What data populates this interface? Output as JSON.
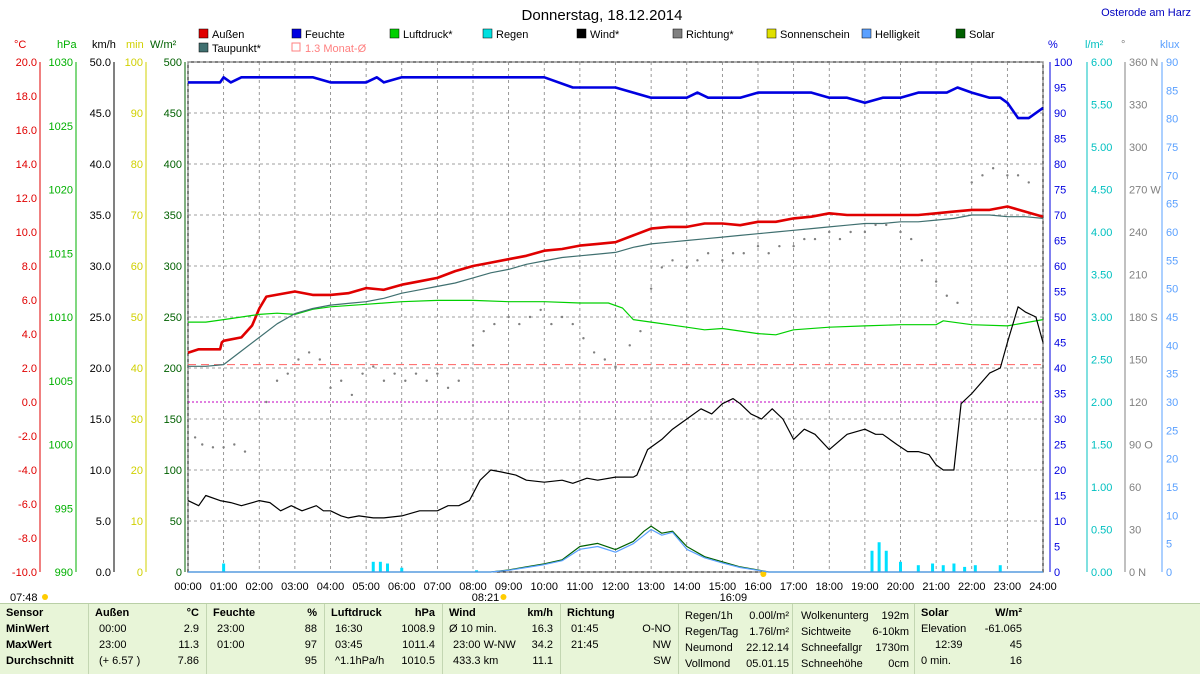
{
  "title": "Donnerstag, 18.12.2014",
  "station": "Osterode am Harz",
  "legend": [
    {
      "label": "Außen",
      "color": "#e00000"
    },
    {
      "label": "Feuchte",
      "color": "#0000e0"
    },
    {
      "label": "Luftdruck*",
      "color": "#00d000"
    },
    {
      "label": "Regen",
      "color": "#00e0e0"
    },
    {
      "label": "Wind*",
      "color": "#000000"
    },
    {
      "label": "Richtung*",
      "color": "#808080"
    },
    {
      "label": "Sonnenschein",
      "color": "#e0e000"
    },
    {
      "label": "Helligkeit",
      "color": "#5aa0ff"
    },
    {
      "label": "Solar",
      "color": "#006000"
    },
    {
      "label": "Taupunkt*",
      "color": "#407070"
    },
    {
      "label": "1.3 Monat-Ø",
      "color": "#ff8080"
    }
  ],
  "axes": {
    "temp": {
      "unit": "°C",
      "color": "#e00000",
      "ticks": [
        "20.0",
        "18.0",
        "16.0",
        "14.0",
        "12.0",
        "10.0",
        "8.0",
        "6.0",
        "4.0",
        "2.0",
        "0.0",
        "-2.0",
        "-4.0",
        "-6.0",
        "-8.0",
        "-10.0"
      ]
    },
    "press": {
      "unit": "hPa",
      "color": "#00b000",
      "ticks": [
        "1030",
        "1025",
        "1020",
        "1015",
        "1010",
        "1005",
        "1000",
        "995",
        "990"
      ]
    },
    "wind": {
      "unit": "km/h",
      "color": "#000000",
      "ticks": [
        "50.0",
        "45.0",
        "40.0",
        "35.0",
        "30.0",
        "25.0",
        "20.0",
        "15.0",
        "10.0",
        "5.0",
        "0.0"
      ]
    },
    "sun": {
      "unit": "min",
      "color": "#d0d000",
      "ticks": [
        "100",
        "90",
        "80",
        "70",
        "60",
        "50",
        "40",
        "30",
        "20",
        "10",
        "0"
      ]
    },
    "solar": {
      "unit": "W/m²",
      "color": "#006000",
      "ticks": [
        "500",
        "450",
        "400",
        "350",
        "300",
        "250",
        "200",
        "150",
        "100",
        "50",
        "0"
      ]
    },
    "hum": {
      "unit": "%",
      "color": "#0000e0",
      "ticks": [
        "100",
        "95",
        "90",
        "85",
        "80",
        "75",
        "70",
        "65",
        "60",
        "55",
        "50",
        "45",
        "40",
        "35",
        "30",
        "25",
        "20",
        "15",
        "10",
        "5",
        "0"
      ]
    },
    "rain": {
      "unit": "l/m²",
      "color": "#00c0c0",
      "ticks": [
        "6.00",
        "5.50",
        "5.00",
        "4.50",
        "4.00",
        "3.50",
        "3.00",
        "2.50",
        "2.00",
        "1.50",
        "1.00",
        "0.50",
        "0.00"
      ]
    },
    "dir": {
      "unit": "°",
      "color": "#808080",
      "ticks": [
        "360 N",
        "330",
        "300",
        "270 W",
        "240",
        "210",
        "180 S",
        "150",
        "120",
        "90 O",
        "60",
        "30",
        "0 N"
      ]
    },
    "klux": {
      "unit": "klux",
      "color": "#5aa0ff",
      "ticks": [
        "90",
        "85",
        "80",
        "75",
        "70",
        "65",
        "60",
        "55",
        "50",
        "45",
        "40",
        "35",
        "30",
        "25",
        "20",
        "15",
        "10",
        "5",
        "0"
      ]
    }
  },
  "x_ticks": [
    "00:00",
    "01:00",
    "02:00",
    "03:00",
    "04:00",
    "05:00",
    "06:00",
    "07:00",
    "08:00",
    "09:00",
    "10:00",
    "11:00",
    "12:00",
    "13:00",
    "14:00",
    "15:00",
    "16:00",
    "17:00",
    "18:00",
    "19:00",
    "20:00",
    "21:00",
    "22:00",
    "23:00",
    "24:00"
  ],
  "sunrise": "08:21",
  "sunset": "16:09",
  "corner_time": "07:48",
  "chart_data": {
    "type": "line",
    "x_unit": "hour",
    "series": [
      {
        "name": "Außen",
        "unit": "°C",
        "color": "#e00000",
        "x": [
          0,
          0.3,
          0.9,
          0.95,
          1,
          1.5,
          1.8,
          2,
          2.2,
          3,
          3.5,
          4,
          4.5,
          5,
          5.5,
          6,
          6.5,
          7,
          7.5,
          8,
          8.5,
          9,
          9.5,
          10,
          10.5,
          11,
          11.5,
          12,
          12.5,
          13,
          13.5,
          14,
          14.5,
          15,
          15.5,
          16,
          16.5,
          17,
          17.5,
          18,
          18.5,
          19,
          19.5,
          20,
          20.5,
          21,
          21.5,
          22,
          22.5,
          23,
          23.5,
          24
        ],
        "y": [
          2.9,
          3.1,
          3.1,
          3.5,
          3.6,
          3.8,
          4.5,
          5.5,
          6.2,
          6.5,
          6.3,
          6.3,
          6.4,
          6.7,
          6.6,
          6.9,
          7.1,
          7.3,
          7.7,
          8.0,
          8.2,
          8.4,
          8.6,
          8.9,
          9.0,
          9.2,
          9.3,
          9.4,
          9.8,
          10.2,
          10.3,
          10.3,
          10.5,
          10.5,
          10.4,
          10.6,
          10.6,
          10.8,
          10.9,
          11.1,
          11.0,
          11.0,
          11.0,
          11.0,
          11.0,
          11.1,
          11.2,
          11.3,
          11.3,
          11.5,
          11.2,
          10.9
        ]
      },
      {
        "name": "Feuchte",
        "unit": "%",
        "color": "#0000e0",
        "x": [
          0,
          0.9,
          1,
          1.2,
          1.5,
          2,
          2.5,
          3,
          3.5,
          4,
          4.5,
          5,
          5.3,
          5.5,
          6,
          7,
          8,
          9,
          10,
          10.8,
          11,
          11.5,
          12,
          12.5,
          13,
          13.5,
          14,
          14.3,
          14.6,
          15,
          15.5,
          16,
          16.5,
          17,
          17.5,
          18,
          18.5,
          19,
          19.5,
          20,
          20.5,
          21,
          21.3,
          21.6,
          22,
          22.5,
          22.8,
          23,
          23.3,
          23.6,
          24
        ],
        "y": [
          96,
          96,
          97,
          96,
          97,
          97,
          97,
          97,
          97,
          96,
          96,
          96,
          97,
          96,
          97,
          97,
          97,
          97,
          97,
          95,
          95,
          95,
          95,
          94,
          93,
          93,
          93,
          94,
          93,
          93,
          93,
          94,
          94,
          94,
          94,
          93,
          93,
          92,
          93,
          93,
          94,
          94,
          94,
          95,
          94,
          93,
          93,
          92,
          89,
          89,
          91
        ]
      },
      {
        "name": "Luftdruck",
        "unit": "hPa",
        "color": "#00d000",
        "x": [
          0,
          0.5,
          1,
          2,
          2.5,
          3,
          3.5,
          4,
          5,
          6,
          7,
          8,
          9,
          10,
          11,
          11.8,
          12.2,
          12.5,
          13,
          14,
          14.5,
          15,
          16,
          16.5,
          17,
          18,
          19,
          20,
          21,
          21.2,
          22,
          23,
          24
        ],
        "y": [
          1009.6,
          1009.6,
          1009.8,
          1010.2,
          1010.3,
          1010.2,
          1010.6,
          1010.8,
          1011.0,
          1011.2,
          1011.3,
          1011.3,
          1011.2,
          1011.2,
          1011.1,
          1011.1,
          1010.7,
          1009.8,
          1009.6,
          1009.2,
          1009.0,
          1009.1,
          1008.7,
          1008.6,
          1009.0,
          1009.2,
          1009.3,
          1009.4,
          1009.4,
          1009.7,
          1009.4,
          1009.3,
          1009.8
        ]
      },
      {
        "name": "Taupunkt",
        "unit": "°C",
        "color": "#407070",
        "x": [
          0,
          0.5,
          1,
          1.5,
          2,
          2.5,
          3,
          3.5,
          4,
          4.5,
          5,
          5.5,
          6,
          6.5,
          7,
          7.5,
          8,
          8.5,
          9,
          9.5,
          10,
          10.5,
          11,
          11.5,
          12,
          12.5,
          13,
          13.5,
          14,
          14.5,
          15,
          15.5,
          16,
          16.5,
          17,
          17.5,
          18,
          18.5,
          19,
          19.5,
          20,
          20.5,
          21,
          21.5,
          22,
          22.5,
          23,
          23.5,
          24
        ],
        "y": [
          2.1,
          2.1,
          2.2,
          3.0,
          3.8,
          4.6,
          5.2,
          5.5,
          5.7,
          5.8,
          5.9,
          6.1,
          6.4,
          6.6,
          6.8,
          7.0,
          7.3,
          7.6,
          7.8,
          8.1,
          8.3,
          8.5,
          8.6,
          8.7,
          8.8,
          9.1,
          9.3,
          9.4,
          9.5,
          9.6,
          9.7,
          9.8,
          9.9,
          10.0,
          10.1,
          10.2,
          10.3,
          10.4,
          10.5,
          10.5,
          10.6,
          10.6,
          10.7,
          10.8,
          11.0,
          11.0,
          10.9,
          10.9,
          10.8
        ]
      },
      {
        "name": "Wind",
        "unit": "km/h",
        "color": "#000000",
        "x": [
          0,
          0.3,
          0.5,
          0.9,
          1.2,
          1.5,
          2,
          2.3,
          2.6,
          2.9,
          3.2,
          3.6,
          3.8,
          4,
          4.3,
          4.5,
          4.8,
          5.2,
          5.5,
          6,
          6.5,
          7,
          7.3,
          7.6,
          7.9,
          8.2,
          8.5,
          8.8,
          9.2,
          9.5,
          10,
          10.5,
          10.8,
          11.2,
          11.5,
          12,
          12.5,
          12.6,
          12.9,
          13.3,
          13.6,
          14,
          14.4,
          14.7,
          15,
          15.3,
          15.5,
          15.8,
          16.1,
          16.4,
          16.7,
          17,
          17.3,
          17.6,
          18,
          18.5,
          19,
          19.3,
          19.5,
          19.9,
          20.2,
          20.5,
          20.8,
          21,
          21.2,
          21.3,
          21.5,
          21.7,
          22,
          22.5,
          22.8,
          23,
          23.3,
          23.5,
          23.8,
          24
        ],
        "y": [
          7,
          6.5,
          7.5,
          7.0,
          6.8,
          6.5,
          7.0,
          6.8,
          6.0,
          6.5,
          6.0,
          6.5,
          6.0,
          6.0,
          5.5,
          5.3,
          5.5,
          5.3,
          5.3,
          5.5,
          6.0,
          6.0,
          6.5,
          6.5,
          7.0,
          9.0,
          10.0,
          9.8,
          9.5,
          9.0,
          8.8,
          9.0,
          8.7,
          9.2,
          9.0,
          9.3,
          9.3,
          9.5,
          12,
          13,
          14,
          15,
          16,
          15.5,
          16.5,
          17,
          16.5,
          15.5,
          15,
          16,
          15,
          13,
          14,
          13.5,
          12,
          13.5,
          14,
          13.5,
          13.5,
          12.5,
          11.8,
          11.8,
          11.5,
          10.5,
          10,
          10,
          10,
          16.5,
          17.5,
          19.5,
          20,
          22.5,
          26,
          25.5,
          25.0,
          22.5
        ]
      },
      {
        "name": "Richtung",
        "unit": "°",
        "color": "#808080",
        "x": [
          0.2,
          0.4,
          0.7,
          1,
          1.3,
          1.6,
          2.2,
          2.5,
          2.8,
          3.1,
          3.4,
          3.7,
          4,
          4.3,
          4.6,
          4.9,
          5.2,
          5.5,
          5.8,
          6.1,
          6.4,
          6.7,
          7,
          7.3,
          7.6,
          8,
          8.3,
          8.6,
          9,
          9.3,
          9.6,
          9.9,
          10.2,
          10.5,
          10.8,
          11.1,
          11.4,
          11.7,
          12,
          12.4,
          12.7,
          13,
          13.3,
          13.6,
          14,
          14.3,
          14.6,
          15,
          15.3,
          15.6,
          16,
          16.3,
          16.6,
          17,
          17.3,
          17.6,
          18,
          18.3,
          18.6,
          19,
          19.3,
          19.6,
          20,
          20.3,
          20.6,
          21,
          21.3,
          21.6,
          22,
          22.3,
          22.6,
          23,
          23.3,
          23.6
        ],
        "y": [
          95,
          90,
          88,
          88,
          90,
          85,
          120,
          135,
          140,
          150,
          155,
          150,
          130,
          135,
          125,
          140,
          145,
          135,
          140,
          135,
          140,
          135,
          140,
          130,
          135,
          160,
          170,
          175,
          180,
          175,
          180,
          185,
          175,
          180,
          175,
          165,
          155,
          150,
          145,
          160,
          170,
          200,
          215,
          220,
          215,
          220,
          225,
          220,
          225,
          225,
          230,
          225,
          230,
          230,
          235,
          235,
          240,
          235,
          240,
          240,
          245,
          245,
          240,
          235,
          220,
          205,
          195,
          190,
          275,
          280,
          285,
          280,
          280,
          275
        ]
      },
      {
        "name": "Solar",
        "unit": "W/m²",
        "color": "#006000",
        "x": [
          0,
          8.5,
          9,
          9.5,
          10,
          10.5,
          11,
          11.5,
          12,
          12.5,
          12.8,
          13,
          13.3,
          13.6,
          14,
          14.5,
          15,
          15.5,
          16,
          16.3,
          24
        ],
        "y": [
          0,
          0,
          2,
          5,
          8,
          12,
          25,
          28,
          22,
          30,
          40,
          45,
          38,
          40,
          25,
          15,
          10,
          5,
          2,
          0,
          0
        ]
      },
      {
        "name": "Helligkeit",
        "unit": "klux",
        "color": "#5aa0ff",
        "x": [
          0,
          8.5,
          9,
          9.5,
          10,
          10.5,
          11,
          11.5,
          12,
          12.5,
          12.8,
          13,
          13.3,
          13.6,
          14,
          14.5,
          15,
          15.5,
          16,
          16.3,
          24
        ],
        "y": [
          0,
          0,
          0.3,
          0.8,
          1.3,
          2.0,
          4.0,
          4.5,
          3.5,
          5.0,
          6.5,
          7.5,
          6.5,
          7.0,
          4.0,
          2.5,
          1.6,
          0.8,
          0.3,
          0,
          0
        ]
      }
    ],
    "rain_bars": {
      "unit": "l/m²",
      "x": [
        1.0,
        5.2,
        5.4,
        5.6,
        6.0,
        8.1,
        19.2,
        19.4,
        19.6,
        20.0,
        20.5,
        20.9,
        21.2,
        21.5,
        21.8,
        22.1,
        22.8
      ],
      "y": [
        0.1,
        0.12,
        0.12,
        0.1,
        0.05,
        0.02,
        0.25,
        0.35,
        0.25,
        0.12,
        0.08,
        0.1,
        0.08,
        0.1,
        0.06,
        0.08,
        0.08
      ]
    },
    "reference_lines": [
      {
        "name": "1.3 Monat-Ø",
        "axis": "°C",
        "value": 2.2,
        "color": "#ff6060"
      },
      {
        "name": "Taupunkt-Ref",
        "axis": "°C",
        "value": 0.0,
        "color": "#c000c0"
      }
    ],
    "x_range": [
      0,
      24
    ],
    "grid": true
  },
  "table": {
    "row_labels": [
      "Sensor",
      "MinWert",
      "MaxWert",
      "Durchschnitt"
    ],
    "aussen": {
      "hdr": "Außen",
      "unit": "°C",
      "rows": [
        [
          "00:00",
          "2.9"
        ],
        [
          "23:00",
          "11.3"
        ],
        [
          "(+ 6.57 )",
          "7.86"
        ]
      ]
    },
    "feuchte": {
      "hdr": "Feuchte",
      "unit": "%",
      "rows": [
        [
          "23:00",
          "88"
        ],
        [
          "01:00",
          "97"
        ],
        [
          "",
          "95"
        ]
      ]
    },
    "luftdruck": {
      "hdr": "Luftdruck",
      "unit": "hPa",
      "rows": [
        [
          "16:30",
          "1008.9"
        ],
        [
          "03:45",
          "1011.4"
        ],
        [
          "^1.1hPa/h",
          "1010.5"
        ]
      ]
    },
    "wind": {
      "hdr": "Wind",
      "unit": "km/h",
      "rows": [
        [
          "Ø 10 min.",
          "16.3"
        ],
        [
          "23:00   W-NW",
          "34.2"
        ],
        [
          "433.3 km",
          "11.1"
        ]
      ]
    },
    "richtung": {
      "hdr": "Richtung",
      "rows": [
        [
          "01:45",
          "O-NO"
        ],
        [
          "21:45",
          "NW"
        ],
        [
          "",
          "SW"
        ]
      ]
    },
    "regen": {
      "rows": [
        [
          "Regen/1h",
          "0.00l/m²"
        ],
        [
          "Regen/Tag",
          "1.76l/m²"
        ],
        [
          "Neumond",
          "22.12.14"
        ],
        [
          "Vollmond",
          "05.01.15"
        ]
      ]
    },
    "wolken": {
      "rows": [
        [
          "Wolkenunterg",
          "192m"
        ],
        [
          "Sichtweite",
          "6-10km"
        ],
        [
          "Schneefallgr",
          "1730m"
        ],
        [
          "Schneehöhe",
          "0cm"
        ]
      ]
    },
    "solar": {
      "hdr": "Solar",
      "unit": "W/m²",
      "rows": [
        [
          "Elevation",
          "-61.065"
        ],
        [
          "12:39",
          "45"
        ],
        [
          "0 min.",
          "16"
        ]
      ]
    }
  }
}
